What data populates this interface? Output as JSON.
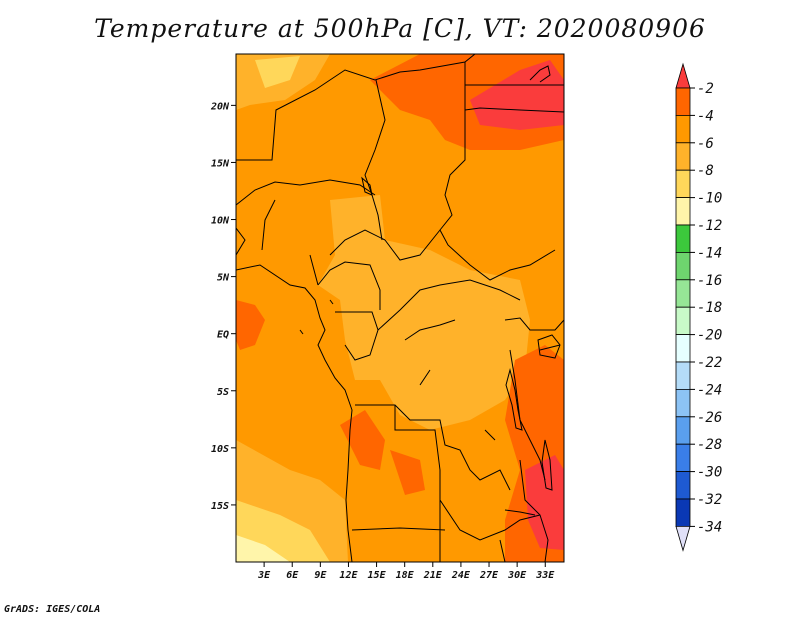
{
  "title": "Temperature at 500hPa [C], VT: 2020080906",
  "footer": "GrADS: IGES/COLA",
  "map": {
    "lon_range": [
      0,
      35
    ],
    "lat_range": [
      -20,
      24.5
    ],
    "lon_ticks": [
      "3E",
      "6E",
      "9E",
      "12E",
      "15E",
      "18E",
      "21E",
      "24E",
      "27E",
      "30E",
      "33E"
    ],
    "lon_values": [
      3,
      6,
      9,
      12,
      15,
      18,
      21,
      24,
      27,
      30,
      33
    ],
    "lat_ticks": [
      "20N",
      "15N",
      "10N",
      "5N",
      "EQ",
      "5S",
      "10S",
      "15S"
    ],
    "lat_values": [
      20,
      15,
      10,
      5,
      0,
      -5,
      -10,
      -15
    ]
  },
  "colorbar": {
    "labels": [
      "-2",
      "-4",
      "-6",
      "-8",
      "-10",
      "-12",
      "-14",
      "-16",
      "-18",
      "-20",
      "-22",
      "-24",
      "-26",
      "-28",
      "-30",
      "-32",
      "-34"
    ],
    "colors": [
      "#fa3c3c",
      "#ff6600",
      "#ff9900",
      "#ffb22a",
      "#ffd75a",
      "#fff5aa",
      "#3cc83c",
      "#6ed56e",
      "#96e696",
      "#c8fac8",
      "#e6ffff",
      "#b4dcf8",
      "#8cc3f5",
      "#5a9fee",
      "#3a7ee8",
      "#1e5ad2",
      "#0a38b4",
      "#0c1a80",
      "#e0e0f8"
    ]
  }
}
